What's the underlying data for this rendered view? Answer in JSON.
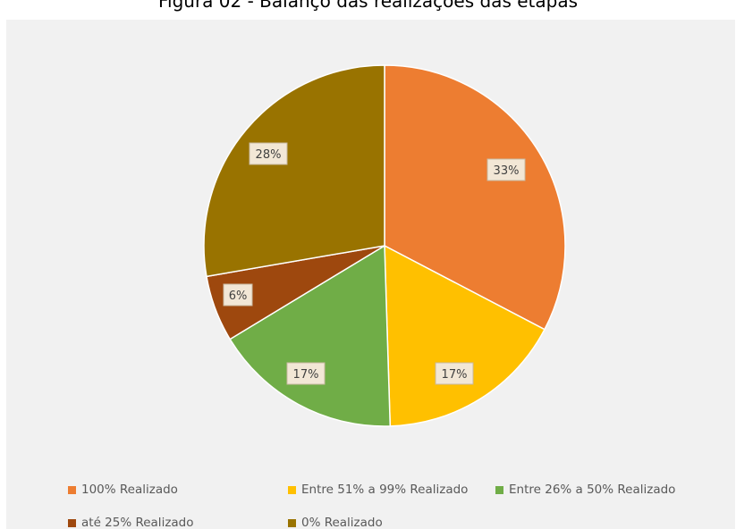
{
  "caption": "Figura 02 - Balanço das realizações das etapas",
  "chart_data": {
    "type": "pie",
    "categories": [
      "100% Realizado",
      "Entre 51% a 99% Realizado",
      "Entre 26% a 50% Realizado",
      "até 25% Realizado",
      "0% Realizado"
    ],
    "values": [
      33,
      17,
      17,
      6,
      28
    ],
    "data_labels": [
      "33%",
      "17%",
      "17%",
      "6%",
      "28%"
    ],
    "colors": [
      "#ED7D31",
      "#FFC000",
      "#70AD47",
      "#9E480E",
      "#997300"
    ],
    "start_angle": "12 o'clock",
    "direction": "clockwise",
    "legend_position": "bottom",
    "legend": [
      {
        "label": "100% Realizado",
        "color": "#ED7D31"
      },
      {
        "label": "Entre 51% a 99% Realizado",
        "color": "#FFC000"
      },
      {
        "label": "Entre 26% a 50% Realizado",
        "color": "#70AD47"
      },
      {
        "label": "até 25% Realizado",
        "color": "#9E480E"
      },
      {
        "label": "0% Realizado",
        "color": "#997300"
      }
    ]
  }
}
